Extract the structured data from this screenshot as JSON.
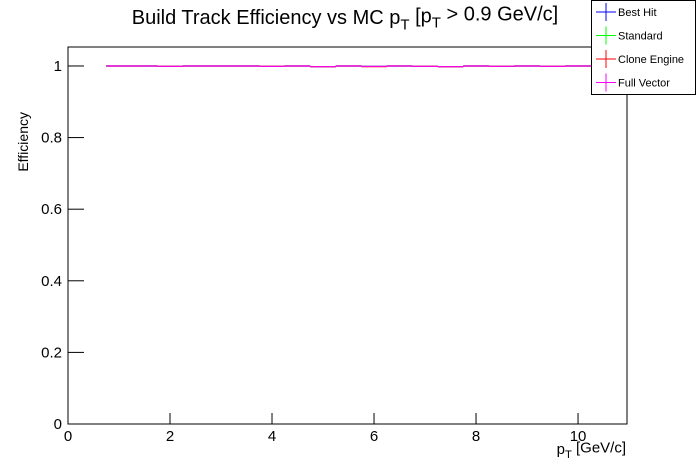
{
  "chart_data": {
    "type": "errorpoints",
    "title_parts": [
      {
        "text": "Build Track Efficiency vs MC p"
      },
      {
        "text": "T",
        "sub": true
      },
      {
        "text": " [p"
      },
      {
        "text": "T",
        "sub": true
      },
      {
        "text": " > 0.9 GeV/c]"
      }
    ],
    "xlabel_parts": [
      {
        "text": "p"
      },
      {
        "text": "T",
        "sub": true
      },
      {
        "text": " [GeV/c]"
      }
    ],
    "ylabel": "Efficiency",
    "x": [
      1,
      1.5,
      2,
      2.5,
      3,
      3.5,
      4,
      4.5,
      5,
      5.5,
      6,
      6.5,
      7,
      7.5,
      8,
      8.5,
      9,
      9.5,
      10
    ],
    "series": [
      {
        "name": "Best Hit",
        "color": "#0000ff",
        "values": [
          1,
          1,
          0.999,
          1,
          1,
          1,
          0.999,
          1,
          0.998,
          1,
          0.999,
          1,
          0.999,
          0.998,
          1,
          0.999,
          1,
          0.999,
          1
        ]
      },
      {
        "name": "Standard",
        "color": "#00ff00",
        "values": [
          1,
          1,
          0.999,
          1,
          1,
          1,
          0.999,
          1,
          0.998,
          1,
          0.999,
          1,
          0.999,
          0.998,
          1,
          0.999,
          1,
          0.999,
          1
        ]
      },
      {
        "name": "Clone Engine",
        "color": "#ff0000",
        "values": [
          1,
          1,
          0.999,
          1,
          1,
          1,
          0.999,
          1,
          0.998,
          1,
          0.998,
          1,
          0.999,
          0.998,
          1,
          0.999,
          1,
          0.999,
          1
        ]
      },
      {
        "name": "Full Vector",
        "color": "#ff00ff",
        "values": [
          1,
          1,
          0.999,
          1,
          1,
          1,
          0.999,
          1,
          0.998,
          1,
          0.999,
          1,
          0.999,
          0.998,
          1,
          0.999,
          1,
          0.999,
          1
        ]
      }
    ],
    "xlim": [
      0,
      10.96
    ],
    "xticks": [
      0,
      2,
      4,
      6,
      8,
      10
    ],
    "ylim": [
      0,
      1.053
    ],
    "yticks": [
      0,
      0.2,
      0.4,
      0.6,
      0.8,
      1
    ],
    "legend": "top-right"
  }
}
